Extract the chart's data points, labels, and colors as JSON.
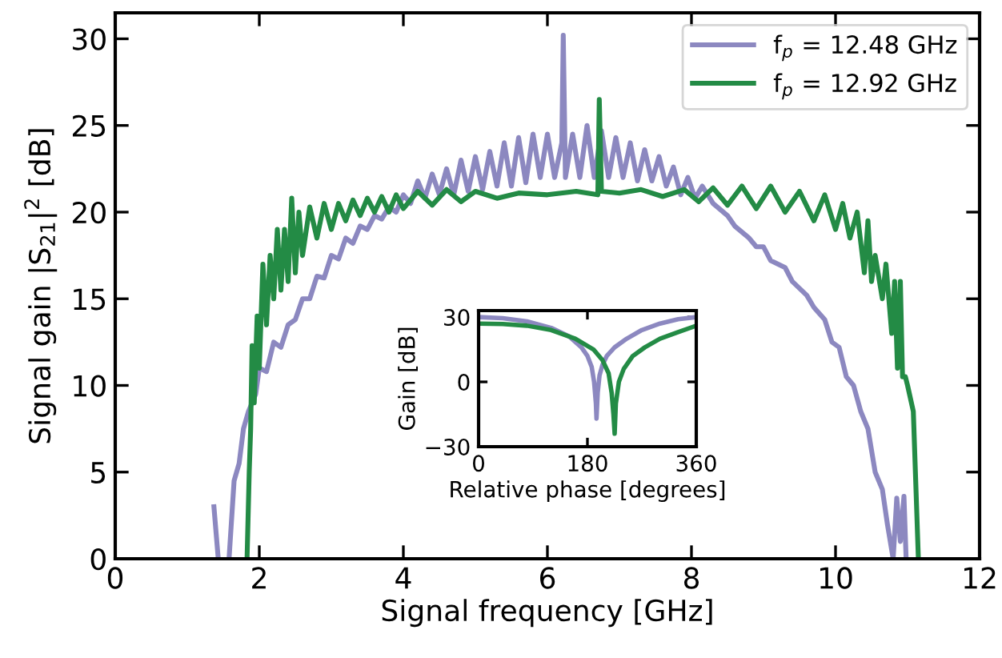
{
  "chart_data": [
    {
      "type": "line",
      "xlabel": "Signal frequency [GHz]",
      "ylabel": "Signal gain |S$_{21}$|$^{2}$ [dB]",
      "xlim": [
        0,
        12
      ],
      "ylim": [
        0,
        31.5
      ],
      "xticks": [
        0,
        2,
        4,
        6,
        8,
        10,
        12
      ],
      "yticks": [
        0,
        5,
        10,
        15,
        20,
        25,
        30
      ],
      "legend": "top right",
      "grid": false,
      "series": [
        {
          "name": "f$_{p}$ = 12.48 GHz",
          "color": "#8c88c0",
          "x": [
            1.37,
            1.43,
            1.5,
            1.58,
            1.65,
            1.72,
            1.78,
            1.85,
            1.95,
            2.0,
            2.1,
            2.2,
            2.3,
            2.4,
            2.5,
            2.6,
            2.7,
            2.8,
            2.9,
            3.0,
            3.1,
            3.2,
            3.3,
            3.4,
            3.5,
            3.6,
            3.7,
            3.8,
            3.9,
            4.0,
            4.1,
            4.2,
            4.3,
            4.4,
            4.5,
            4.6,
            4.7,
            4.8,
            4.9,
            5.0,
            5.1,
            5.2,
            5.3,
            5.4,
            5.5,
            5.6,
            5.7,
            5.8,
            5.9,
            6.0,
            6.1,
            6.2,
            6.22,
            6.25,
            6.35,
            6.45,
            6.55,
            6.65,
            6.75,
            6.85,
            6.95,
            7.05,
            7.15,
            7.25,
            7.35,
            7.45,
            7.55,
            7.65,
            7.75,
            7.85,
            7.95,
            8.05,
            8.15,
            8.3,
            8.5,
            8.6,
            8.8,
            8.9,
            9.0,
            9.1,
            9.3,
            9.4,
            9.6,
            9.7,
            9.85,
            9.95,
            10.05,
            10.15,
            10.25,
            10.35,
            10.45,
            10.55,
            10.65,
            10.72,
            10.8,
            10.85,
            10.9,
            10.95,
            10.98
          ],
          "values": [
            3.0,
            0,
            null,
            0,
            4.5,
            5.5,
            7.5,
            8.5,
            9.5,
            11,
            10.8,
            12.5,
            12.2,
            13.5,
            13.8,
            15,
            15,
            16.3,
            16.2,
            17.5,
            17.3,
            18.5,
            18.2,
            19.2,
            19,
            19.8,
            19.6,
            20.3,
            20,
            21,
            20.5,
            21.8,
            20.8,
            22.2,
            21,
            22.5,
            21,
            23,
            21.2,
            23.2,
            21.3,
            23.5,
            21.5,
            24,
            21.5,
            24.3,
            21.7,
            24.5,
            22,
            24.5,
            22,
            24,
            30.2,
            22,
            24.5,
            22,
            25,
            22,
            24.7,
            22,
            24.3,
            22,
            24,
            21.8,
            23.6,
            21.8,
            23.2,
            21.5,
            22.6,
            21,
            22,
            20.8,
            21.5,
            20.5,
            19.8,
            19.2,
            18.5,
            18,
            18,
            17.2,
            16.8,
            16,
            15.2,
            14.5,
            13.8,
            12.5,
            12.2,
            10.5,
            10,
            8.5,
            7.5,
            5,
            4,
            2,
            0,
            3.5,
            1,
            3.6,
            0
          ]
        },
        {
          "name": "f$_{p}$ = 12.92 GHz",
          "color": "#238b45",
          "x": [
            1.83,
            1.86,
            1.88,
            1.9,
            1.93,
            1.97,
            2.0,
            2.05,
            2.1,
            2.15,
            2.2,
            2.25,
            2.3,
            2.35,
            2.4,
            2.45,
            2.5,
            2.55,
            2.6,
            2.7,
            2.8,
            2.9,
            3.0,
            3.1,
            3.2,
            3.3,
            3.4,
            3.5,
            3.6,
            3.7,
            3.8,
            3.9,
            4.0,
            4.2,
            4.4,
            4.6,
            4.8,
            5.0,
            5.3,
            5.6,
            6.0,
            6.4,
            6.7,
            6.72,
            6.75,
            7.0,
            7.3,
            7.6,
            7.9,
            8.1,
            8.3,
            8.5,
            8.7,
            8.9,
            9.1,
            9.3,
            9.5,
            9.7,
            9.85,
            10.0,
            10.1,
            10.2,
            10.3,
            10.4,
            10.45,
            10.5,
            10.55,
            10.65,
            10.7,
            10.78,
            10.82,
            10.86,
            10.9,
            10.93,
            10.97,
            11.0,
            11.08,
            11.15
          ],
          "values": [
            0,
            5,
            7.5,
            12.3,
            9,
            14,
            11,
            17,
            13.5,
            17.5,
            15,
            19,
            15.5,
            19,
            16,
            20.8,
            16.5,
            20,
            17.5,
            20.3,
            18.5,
            20.5,
            19,
            20.5,
            19.5,
            20.7,
            19.8,
            20.8,
            20,
            20.9,
            20,
            21,
            20.2,
            21.2,
            20.4,
            21.3,
            20.6,
            21.2,
            20.8,
            21.1,
            21,
            21.2,
            21,
            26.5,
            21.2,
            21.1,
            21.3,
            20.9,
            21.3,
            20.6,
            21.4,
            20.4,
            21.5,
            20.2,
            21.5,
            20,
            21.2,
            19.5,
            21,
            19,
            20.5,
            18.5,
            20,
            16.5,
            19.5,
            16,
            17.5,
            15,
            17,
            13,
            16,
            11,
            16,
            10.5,
            10.5,
            10,
            8.5,
            0
          ]
        }
      ]
    },
    {
      "type": "line",
      "xlabel": "Relative phase [degrees]",
      "ylabel": "Gain [dB]",
      "xlim": [
        0,
        360
      ],
      "ylim": [
        -30,
        33
      ],
      "xticks": [
        0,
        180,
        360
      ],
      "yticks": [
        -30,
        0,
        30
      ],
      "legend": false,
      "grid": false,
      "series": [
        {
          "color": "#8c88c0",
          "x": [
            0,
            40,
            80,
            120,
            150,
            170,
            180,
            187,
            191,
            194,
            195,
            197,
            200,
            205,
            212,
            225,
            245,
            270,
            300,
            330,
            360
          ],
          "values": [
            30,
            29.5,
            28,
            25,
            21,
            16,
            12,
            7,
            0,
            -10,
            -17,
            -5,
            3,
            8,
            12,
            16,
            20,
            24,
            27,
            29,
            30
          ]
        },
        {
          "color": "#238b45",
          "x": [
            0,
            40,
            80,
            120,
            160,
            190,
            205,
            215,
            220,
            223,
            225,
            227,
            232,
            240,
            255,
            275,
            300,
            330,
            360
          ],
          "values": [
            27,
            26.8,
            26,
            24,
            20,
            15,
            10,
            4,
            -5,
            -15,
            -24,
            -10,
            0,
            6,
            12,
            16,
            20,
            23,
            26
          ]
        }
      ]
    }
  ]
}
